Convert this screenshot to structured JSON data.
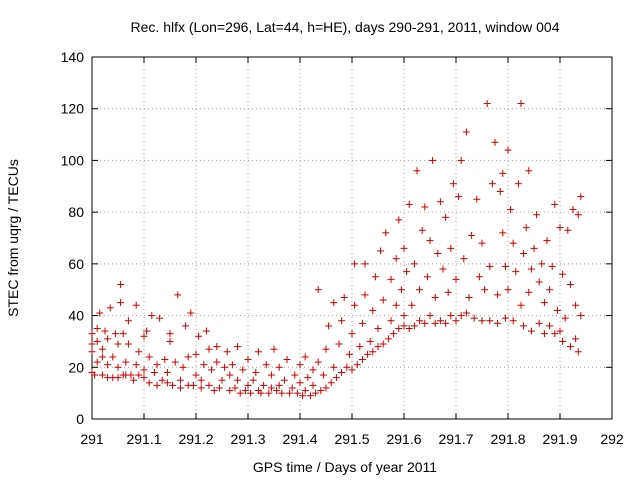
{
  "chart_data": {
    "type": "scatter",
    "title": "Rec. hlfx (Lon=296, Lat=44, h=HE), days 290-291, 2011, window 004",
    "xlabel": "GPS time / Days of year 2011",
    "ylabel": "STEC from uqrg / TECUs",
    "xlim": [
      291,
      292
    ],
    "ylim": [
      0,
      140
    ],
    "xticks": [
      291,
      291.1,
      291.2,
      291.3,
      291.4,
      291.5,
      291.6,
      291.7,
      291.8,
      291.9,
      292
    ],
    "xtick_labels": [
      "291",
      "291.1",
      "291.2",
      "291.3",
      "291.4",
      "291.5",
      "291.6",
      "291.7",
      "291.8",
      "291.9",
      "292"
    ],
    "yticks": [
      0,
      20,
      40,
      60,
      80,
      100,
      120,
      140
    ],
    "ytick_labels": [
      "0",
      "20",
      "40",
      "60",
      "80",
      "100",
      "120",
      "140"
    ],
    "grid": true,
    "marker": "+",
    "color": "#cc0000",
    "series": [
      {
        "name": "STEC",
        "points": [
          [
            291.0,
            18
          ],
          [
            291.0,
            26
          ],
          [
            291.0,
            29
          ],
          [
            291.0,
            33
          ],
          [
            291.005,
            17
          ],
          [
            291.01,
            22
          ],
          [
            291.01,
            30
          ],
          [
            291.01,
            35
          ],
          [
            291.015,
            41
          ],
          [
            291.02,
            17
          ],
          [
            291.02,
            24
          ],
          [
            291.02,
            27
          ],
          [
            291.025,
            34
          ],
          [
            291.03,
            16
          ],
          [
            291.03,
            21
          ],
          [
            291.03,
            31
          ],
          [
            291.035,
            43
          ],
          [
            291.04,
            16
          ],
          [
            291.04,
            24
          ],
          [
            291.045,
            33
          ],
          [
            291.05,
            16
          ],
          [
            291.05,
            20
          ],
          [
            291.05,
            29
          ],
          [
            291.055,
            45
          ],
          [
            291.055,
            52
          ],
          [
            291.06,
            17
          ],
          [
            291.06,
            33
          ],
          [
            291.065,
            17
          ],
          [
            291.065,
            22
          ],
          [
            291.07,
            29
          ],
          [
            291.07,
            38
          ],
          [
            291.075,
            17
          ],
          [
            291.08,
            15
          ],
          [
            291.085,
            21
          ],
          [
            291.085,
            44
          ],
          [
            291.09,
            17
          ],
          [
            291.09,
            26
          ],
          [
            291.1,
            16
          ],
          [
            291.1,
            19
          ],
          [
            291.1,
            32
          ],
          [
            291.105,
            34
          ],
          [
            291.11,
            14
          ],
          [
            291.11,
            24
          ],
          [
            291.115,
            40
          ],
          [
            291.12,
            18
          ],
          [
            291.125,
            13
          ],
          [
            291.125,
            21
          ],
          [
            291.13,
            39
          ],
          [
            291.135,
            15
          ],
          [
            291.14,
            23
          ],
          [
            291.145,
            14
          ],
          [
            291.145,
            18
          ],
          [
            291.15,
            30
          ],
          [
            291.15,
            33
          ],
          [
            291.155,
            13
          ],
          [
            291.16,
            22
          ],
          [
            291.165,
            48
          ],
          [
            291.17,
            12
          ],
          [
            291.17,
            15
          ],
          [
            291.175,
            20
          ],
          [
            291.18,
            36
          ],
          [
            291.185,
            13
          ],
          [
            291.185,
            24
          ],
          [
            291.19,
            41
          ],
          [
            291.195,
            13
          ],
          [
            291.2,
            17
          ],
          [
            291.2,
            25
          ],
          [
            291.205,
            32
          ],
          [
            291.21,
            12
          ],
          [
            291.21,
            15
          ],
          [
            291.215,
            21
          ],
          [
            291.22,
            34
          ],
          [
            291.225,
            13
          ],
          [
            291.225,
            27
          ],
          [
            291.23,
            19
          ],
          [
            291.235,
            11
          ],
          [
            291.24,
            22
          ],
          [
            291.24,
            28
          ],
          [
            291.245,
            12
          ],
          [
            291.25,
            15
          ],
          [
            291.255,
            20
          ],
          [
            291.26,
            26
          ],
          [
            291.265,
            11
          ],
          [
            291.265,
            17
          ],
          [
            291.27,
            21
          ],
          [
            291.275,
            12
          ],
          [
            291.28,
            15
          ],
          [
            291.28,
            28
          ],
          [
            291.285,
            10
          ],
          [
            291.29,
            19
          ],
          [
            291.295,
            11
          ],
          [
            291.3,
            13
          ],
          [
            291.3,
            23
          ],
          [
            291.305,
            10
          ],
          [
            291.31,
            15
          ],
          [
            291.315,
            18
          ],
          [
            291.32,
            11
          ],
          [
            291.32,
            26
          ],
          [
            291.325,
            10
          ],
          [
            291.33,
            13
          ],
          [
            291.335,
            21
          ],
          [
            291.34,
            10
          ],
          [
            291.345,
            12
          ],
          [
            291.345,
            17
          ],
          [
            291.35,
            27
          ],
          [
            291.355,
            11
          ],
          [
            291.36,
            13
          ],
          [
            291.36,
            20
          ],
          [
            291.365,
            10
          ],
          [
            291.37,
            15
          ],
          [
            291.375,
            23
          ],
          [
            291.38,
            10
          ],
          [
            291.385,
            12
          ],
          [
            291.39,
            17
          ],
          [
            291.395,
            10
          ],
          [
            291.4,
            14
          ],
          [
            291.4,
            21
          ],
          [
            291.405,
            9
          ],
          [
            291.41,
            11
          ],
          [
            291.41,
            24
          ],
          [
            291.415,
            16
          ],
          [
            291.42,
            9
          ],
          [
            291.425,
            13
          ],
          [
            291.425,
            19
          ],
          [
            291.43,
            10
          ],
          [
            291.435,
            22
          ],
          [
            291.435,
            50
          ],
          [
            291.44,
            11
          ],
          [
            291.445,
            17
          ],
          [
            291.45,
            12
          ],
          [
            291.45,
            27
          ],
          [
            291.455,
            36
          ],
          [
            291.46,
            14
          ],
          [
            291.465,
            20
          ],
          [
            291.465,
            45
          ],
          [
            291.47,
            16
          ],
          [
            291.475,
            29
          ],
          [
            291.48,
            18
          ],
          [
            291.48,
            38
          ],
          [
            291.485,
            47
          ],
          [
            291.49,
            20
          ],
          [
            291.495,
            25
          ],
          [
            291.5,
            19
          ],
          [
            291.5,
            33
          ],
          [
            291.505,
            44
          ],
          [
            291.505,
            60
          ],
          [
            291.51,
            21
          ],
          [
            291.515,
            28
          ],
          [
            291.52,
            23
          ],
          [
            291.52,
            37
          ],
          [
            291.525,
            48
          ],
          [
            291.525,
            60
          ],
          [
            291.53,
            25
          ],
          [
            291.535,
            30
          ],
          [
            291.54,
            26
          ],
          [
            291.54,
            42
          ],
          [
            291.545,
            55
          ],
          [
            291.55,
            28
          ],
          [
            291.55,
            35
          ],
          [
            291.555,
            65
          ],
          [
            291.56,
            29
          ],
          [
            291.56,
            46
          ],
          [
            291.565,
            72
          ],
          [
            291.57,
            31
          ],
          [
            291.575,
            38
          ],
          [
            291.575,
            54
          ],
          [
            291.58,
            33
          ],
          [
            291.585,
            44
          ],
          [
            291.585,
            62
          ],
          [
            291.59,
            35
          ],
          [
            291.59,
            77
          ],
          [
            291.595,
            50
          ],
          [
            291.6,
            36
          ],
          [
            291.6,
            40
          ],
          [
            291.6,
            66
          ],
          [
            291.605,
            57
          ],
          [
            291.61,
            35
          ],
          [
            291.61,
            83
          ],
          [
            291.615,
            44
          ],
          [
            291.62,
            36
          ],
          [
            291.62,
            60
          ],
          [
            291.625,
            96
          ],
          [
            291.63,
            38
          ],
          [
            291.63,
            50
          ],
          [
            291.635,
            73
          ],
          [
            291.64,
            37
          ],
          [
            291.64,
            82
          ],
          [
            291.645,
            55
          ],
          [
            291.65,
            40
          ],
          [
            291.65,
            69
          ],
          [
            291.655,
            100
          ],
          [
            291.66,
            37
          ],
          [
            291.66,
            47
          ],
          [
            291.665,
            64
          ],
          [
            291.67,
            38
          ],
          [
            291.67,
            84
          ],
          [
            291.675,
            58
          ],
          [
            291.68,
            37
          ],
          [
            291.68,
            78
          ],
          [
            291.685,
            49
          ],
          [
            291.69,
            40
          ],
          [
            291.69,
            66
          ],
          [
            291.695,
            91
          ],
          [
            291.7,
            38
          ],
          [
            291.7,
            54
          ],
          [
            291.705,
            86
          ],
          [
            291.71,
            40
          ],
          [
            291.71,
            100
          ],
          [
            291.715,
            62
          ],
          [
            291.72,
            41
          ],
          [
            291.72,
            111
          ],
          [
            291.725,
            47
          ],
          [
            291.73,
            71
          ],
          [
            291.735,
            39
          ],
          [
            291.74,
            85
          ],
          [
            291.745,
            55
          ],
          [
            291.75,
            38
          ],
          [
            291.75,
            68
          ],
          [
            291.755,
            50
          ],
          [
            291.76,
            122
          ],
          [
            291.765,
            38
          ],
          [
            291.765,
            59
          ],
          [
            291.77,
            91
          ],
          [
            291.775,
            107
          ],
          [
            291.78,
            37
          ],
          [
            291.78,
            48
          ],
          [
            291.785,
            88
          ],
          [
            291.79,
            72
          ],
          [
            291.79,
            95
          ],
          [
            291.795,
            39
          ],
          [
            291.795,
            59
          ],
          [
            291.8,
            104
          ],
          [
            291.8,
            50
          ],
          [
            291.805,
            81
          ],
          [
            291.81,
            38
          ],
          [
            291.81,
            68
          ],
          [
            291.815,
            57
          ],
          [
            291.82,
            91
          ],
          [
            291.825,
            122
          ],
          [
            291.825,
            44
          ],
          [
            291.83,
            36
          ],
          [
            291.83,
            64
          ],
          [
            291.835,
            74
          ],
          [
            291.84,
            96
          ],
          [
            291.84,
            49
          ],
          [
            291.845,
            34
          ],
          [
            291.845,
            58
          ],
          [
            291.85,
            66
          ],
          [
            291.855,
            79
          ],
          [
            291.86,
            37
          ],
          [
            291.86,
            53
          ],
          [
            291.865,
            60
          ],
          [
            291.87,
            33
          ],
          [
            291.87,
            45
          ],
          [
            291.875,
            69
          ],
          [
            291.88,
            36
          ],
          [
            291.88,
            50
          ],
          [
            291.885,
            59
          ],
          [
            291.89,
            33
          ],
          [
            291.89,
            83
          ],
          [
            291.895,
            42
          ],
          [
            291.9,
            34
          ],
          [
            291.9,
            74
          ],
          [
            291.905,
            30
          ],
          [
            291.905,
            56
          ],
          [
            291.91,
            39
          ],
          [
            291.915,
            73
          ],
          [
            291.92,
            28
          ],
          [
            291.92,
            52
          ],
          [
            291.925,
            81
          ],
          [
            291.93,
            31
          ],
          [
            291.93,
            44
          ],
          [
            291.935,
            26
          ],
          [
            291.935,
            79
          ],
          [
            291.94,
            40
          ],
          [
            291.94,
            86
          ]
        ]
      }
    ]
  }
}
